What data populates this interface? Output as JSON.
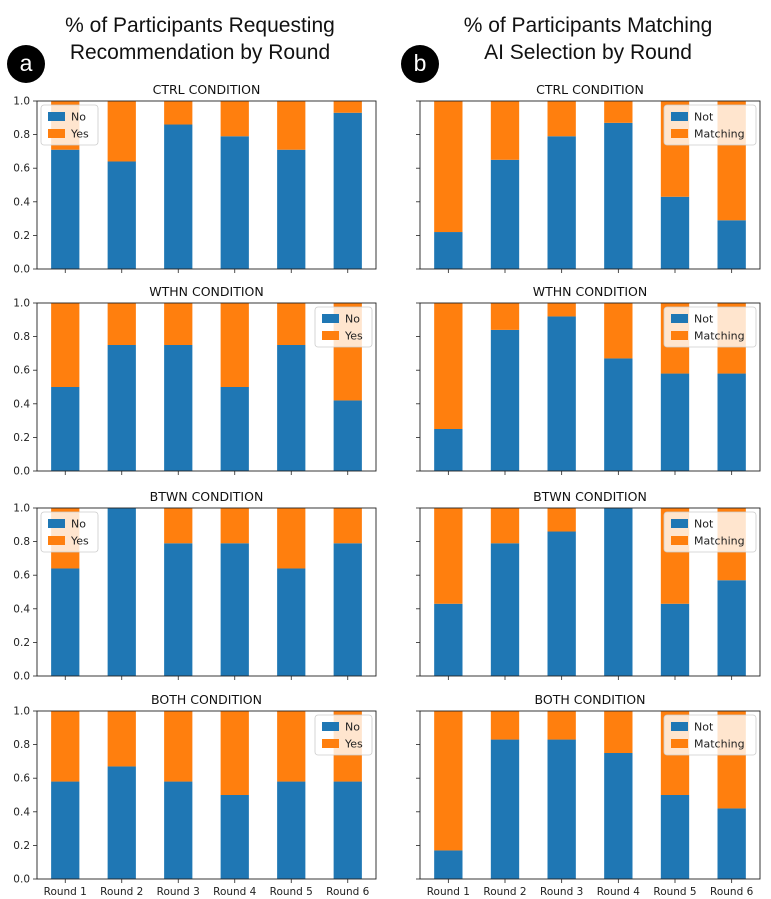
{
  "header": {
    "left_title_line1": "% of Participants Requesting",
    "left_title_line2": "Recommendation by Round",
    "right_title_line1": "% of Participants Matching",
    "right_title_line2": "AI Selection by Round",
    "badge_a": "a",
    "badge_b": "b"
  },
  "colors": {
    "primary": "#1f77b4",
    "secondary": "#ff7f0e"
  },
  "chart_data": [
    {
      "type": "bar",
      "stacked": true,
      "column": "a",
      "title": "CTRL CONDITION",
      "categories": [
        "Round 1",
        "Round 2",
        "Round 3",
        "Round 4",
        "Round 5",
        "Round 6"
      ],
      "series": [
        {
          "name": "No",
          "values": [
            0.71,
            0.64,
            0.86,
            0.79,
            0.71,
            0.93
          ]
        },
        {
          "name": "Yes",
          "values": [
            0.29,
            0.36,
            0.14,
            0.21,
            0.29,
            0.07
          ]
        }
      ],
      "ylim": [
        0,
        1
      ],
      "yticks": [
        "0.0",
        "0.2",
        "0.4",
        "0.6",
        "0.8",
        "1.0"
      ],
      "legend": "top-left"
    },
    {
      "type": "bar",
      "stacked": true,
      "column": "b",
      "title": "CTRL CONDITION",
      "categories": [
        "Round 1",
        "Round 2",
        "Round 3",
        "Round 4",
        "Round 5",
        "Round 6"
      ],
      "series": [
        {
          "name": "Not",
          "values": [
            0.22,
            0.65,
            0.79,
            0.87,
            0.43,
            0.29
          ]
        },
        {
          "name": "Matching",
          "values": [
            0.78,
            0.35,
            0.21,
            0.13,
            0.57,
            0.71
          ]
        }
      ],
      "ylim": [
        0,
        1
      ],
      "legend": "top-right"
    },
    {
      "type": "bar",
      "stacked": true,
      "column": "a",
      "title": "WTHN CONDITION",
      "categories": [
        "Round 1",
        "Round 2",
        "Round 3",
        "Round 4",
        "Round 5",
        "Round 6"
      ],
      "series": [
        {
          "name": "No",
          "values": [
            0.5,
            0.75,
            0.75,
            0.5,
            0.75,
            0.42
          ]
        },
        {
          "name": "Yes",
          "values": [
            0.5,
            0.25,
            0.25,
            0.5,
            0.25,
            0.58
          ]
        }
      ],
      "ylim": [
        0,
        1
      ],
      "yticks": [
        "0.0",
        "0.2",
        "0.4",
        "0.6",
        "0.8",
        "1.0"
      ],
      "legend": "top-right"
    },
    {
      "type": "bar",
      "stacked": true,
      "column": "b",
      "title": "WTHN CONDITION",
      "categories": [
        "Round 1",
        "Round 2",
        "Round 3",
        "Round 4",
        "Round 5",
        "Round 6"
      ],
      "series": [
        {
          "name": "Not",
          "values": [
            0.25,
            0.84,
            0.92,
            0.67,
            0.58,
            0.58
          ]
        },
        {
          "name": "Matching",
          "values": [
            0.75,
            0.16,
            0.08,
            0.33,
            0.42,
            0.42
          ]
        }
      ],
      "ylim": [
        0,
        1
      ],
      "legend": "top-right"
    },
    {
      "type": "bar",
      "stacked": true,
      "column": "a",
      "title": "BTWN CONDITION",
      "categories": [
        "Round 1",
        "Round 2",
        "Round 3",
        "Round 4",
        "Round 5",
        "Round 6"
      ],
      "series": [
        {
          "name": "No",
          "values": [
            0.64,
            1.0,
            0.79,
            0.79,
            0.64,
            0.79
          ]
        },
        {
          "name": "Yes",
          "values": [
            0.36,
            0.0,
            0.21,
            0.21,
            0.36,
            0.21
          ]
        }
      ],
      "ylim": [
        0,
        1
      ],
      "yticks": [
        "0.0",
        "0.2",
        "0.4",
        "0.6",
        "0.8",
        "1.0"
      ],
      "legend": "top-left"
    },
    {
      "type": "bar",
      "stacked": true,
      "column": "b",
      "title": "BTWN CONDITION",
      "categories": [
        "Round 1",
        "Round 2",
        "Round 3",
        "Round 4",
        "Round 5",
        "Round 6"
      ],
      "series": [
        {
          "name": "Not",
          "values": [
            0.43,
            0.79,
            0.86,
            1.0,
            0.43,
            0.57
          ]
        },
        {
          "name": "Matching",
          "values": [
            0.57,
            0.21,
            0.14,
            0.0,
            0.57,
            0.43
          ]
        }
      ],
      "ylim": [
        0,
        1
      ],
      "legend": "top-right"
    },
    {
      "type": "bar",
      "stacked": true,
      "column": "a",
      "title": "BOTH CONDITION",
      "categories": [
        "Round 1",
        "Round 2",
        "Round 3",
        "Round 4",
        "Round 5",
        "Round 6"
      ],
      "series": [
        {
          "name": "No",
          "values": [
            0.58,
            0.67,
            0.58,
            0.5,
            0.58,
            0.58
          ]
        },
        {
          "name": "Yes",
          "values": [
            0.42,
            0.33,
            0.42,
            0.5,
            0.42,
            0.42
          ]
        }
      ],
      "ylim": [
        0,
        1
      ],
      "yticks": [
        "0.0",
        "0.2",
        "0.4",
        "0.6",
        "0.8",
        "1.0"
      ],
      "legend": "top-right",
      "xticks": true
    },
    {
      "type": "bar",
      "stacked": true,
      "column": "b",
      "title": "BOTH CONDITION",
      "categories": [
        "Round 1",
        "Round 2",
        "Round 3",
        "Round 4",
        "Round 5",
        "Round 6"
      ],
      "series": [
        {
          "name": "Not",
          "values": [
            0.17,
            0.83,
            0.83,
            0.75,
            0.5,
            0.42
          ]
        },
        {
          "name": "Matching",
          "values": [
            0.83,
            0.17,
            0.17,
            0.25,
            0.5,
            0.58
          ]
        }
      ],
      "ylim": [
        0,
        1
      ],
      "legend": "top-right",
      "xticks": true
    }
  ]
}
